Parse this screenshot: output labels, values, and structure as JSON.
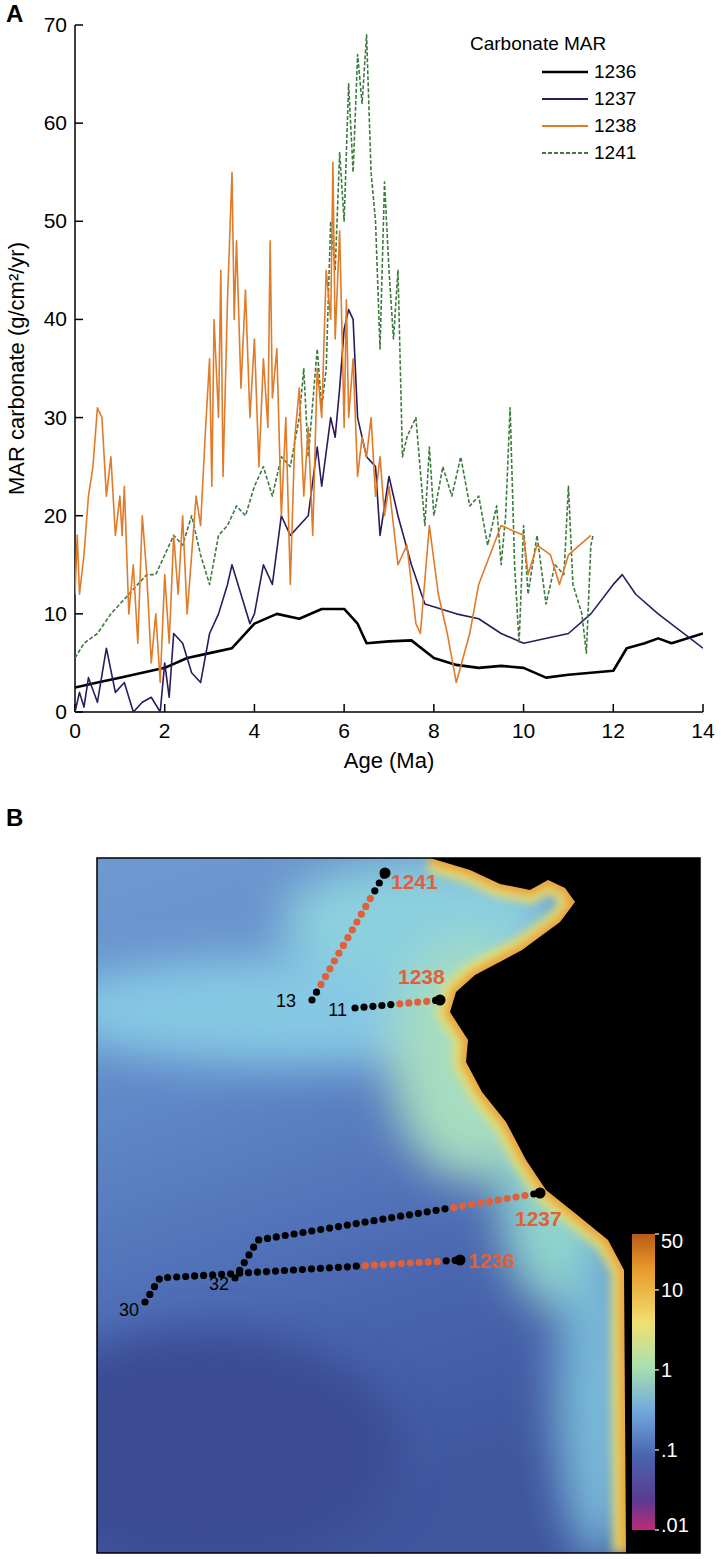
{
  "chart_data": {
    "type": "line",
    "panel_label": "A",
    "x_label": "Age (Ma)",
    "y_label": "MAR carbonate (g/cm²/yr)",
    "legend_title": "Carbonate MAR",
    "legend": "upper right",
    "xlim": [
      0,
      14
    ],
    "xticks": [
      0,
      2,
      4,
      6,
      8,
      10,
      12,
      14
    ],
    "ylim": [
      0,
      70
    ],
    "yticks": [
      0,
      10,
      20,
      30,
      40,
      50,
      60,
      70
    ],
    "grid": false,
    "series": [
      {
        "name": "1236",
        "color": "#000000",
        "line_style": "solid",
        "x": [
          0,
          0.5,
          1,
          1.5,
          2,
          2.5,
          3,
          3.5,
          4,
          4.5,
          5,
          5.5,
          6,
          6.3,
          6.5,
          7,
          7.5,
          8,
          8.5,
          9,
          9.5,
          10,
          10.5,
          11,
          12,
          12.3,
          12.7,
          13,
          13.3,
          14
        ],
        "values": [
          2.5,
          3,
          3.5,
          4,
          4.5,
          5.5,
          6,
          6.5,
          9,
          10,
          9.5,
          10.5,
          10.5,
          9,
          7,
          7.2,
          7.3,
          5.5,
          4.8,
          4.5,
          4.7,
          4.5,
          3.5,
          3.8,
          4.2,
          6.5,
          7,
          7.5,
          7,
          8
        ]
      },
      {
        "name": "1237",
        "color": "#2b1a5e",
        "line_style": "solid",
        "x": [
          0,
          0.1,
          0.2,
          0.3,
          0.5,
          0.7,
          0.9,
          1.1,
          1.3,
          1.5,
          1.7,
          1.9,
          2.0,
          2.1,
          2.2,
          2.4,
          2.6,
          2.8,
          3.0,
          3.2,
          3.4,
          3.5,
          3.7,
          3.9,
          4.0,
          4.2,
          4.4,
          4.6,
          4.8,
          5.0,
          5.2,
          5.4,
          5.5,
          5.7,
          5.8,
          5.9,
          6.0,
          6.1,
          6.2,
          6.3,
          6.5,
          6.7,
          6.8,
          7.0,
          7.2,
          7.5,
          7.8,
          8.5,
          9,
          9.5,
          10,
          11,
          11.5,
          12,
          12.2,
          12.5,
          13,
          14
        ],
        "values": [
          0,
          2,
          0.5,
          3.5,
          1,
          6.5,
          2,
          3,
          0,
          1,
          1.5,
          0,
          5,
          1.5,
          8,
          7,
          4,
          3,
          8,
          10,
          13,
          15,
          12,
          9,
          10,
          15,
          13,
          20,
          18,
          19,
          20,
          27,
          23,
          30,
          28,
          33,
          39,
          41,
          40,
          30,
          26,
          25,
          18,
          24,
          20,
          15,
          11,
          10,
          9.5,
          8,
          7,
          8,
          10,
          13,
          14,
          12,
          10,
          6.5
        ]
      },
      {
        "name": "1238",
        "color": "#e07b2a",
        "line_style": "solid",
        "x": [
          0,
          0.05,
          0.1,
          0.2,
          0.3,
          0.4,
          0.5,
          0.6,
          0.7,
          0.8,
          0.9,
          1.0,
          1.05,
          1.1,
          1.2,
          1.3,
          1.4,
          1.5,
          1.6,
          1.7,
          1.8,
          1.9,
          2.0,
          2.1,
          2.2,
          2.3,
          2.4,
          2.5,
          2.6,
          2.7,
          2.8,
          2.9,
          3.0,
          3.05,
          3.1,
          3.2,
          3.25,
          3.3,
          3.4,
          3.5,
          3.55,
          3.6,
          3.7,
          3.8,
          3.9,
          4.0,
          4.1,
          4.2,
          4.3,
          4.35,
          4.4,
          4.5,
          4.6,
          4.7,
          4.8,
          4.9,
          5.0,
          5.1,
          5.2,
          5.3,
          5.4,
          5.5,
          5.6,
          5.7,
          5.75,
          5.8,
          5.9,
          6.0,
          6.05,
          6.1,
          6.2,
          6.3,
          6.4,
          6.5,
          6.6,
          6.7,
          6.8,
          6.9,
          7.0,
          7.2,
          7.4,
          7.6,
          7.7,
          7.9,
          8.1,
          8.3,
          8.5,
          8.8,
          9.0,
          9.5,
          10.0,
          10.1,
          10.3,
          10.6,
          10.8,
          11.0,
          11.5
        ],
        "values": [
          12,
          18,
          12,
          16,
          22,
          25,
          31,
          30,
          22,
          26,
          18,
          22,
          18,
          23,
          10,
          15,
          7,
          20,
          14,
          5,
          10,
          3,
          14,
          7,
          18,
          12,
          20,
          10,
          16,
          22,
          19,
          28,
          36,
          23,
          40,
          30,
          45,
          24,
          42,
          55,
          40,
          48,
          33,
          43,
          30,
          38,
          25,
          36,
          29,
          48,
          32,
          37,
          20,
          30,
          13,
          28,
          33,
          22,
          29,
          18,
          35,
          30,
          45,
          40,
          56,
          38,
          49,
          29,
          42,
          30,
          36,
          24,
          28,
          26,
          30,
          22,
          26,
          20,
          23,
          15,
          17,
          9,
          8,
          19,
          12,
          8,
          3,
          8,
          13,
          19,
          18,
          14,
          17,
          16,
          13,
          16,
          18
        ]
      },
      {
        "name": "1241",
        "color": "#3d7a3d",
        "line_style": "dashed",
        "x": [
          0,
          0.2,
          0.5,
          0.8,
          1.0,
          1.2,
          1.4,
          1.6,
          1.8,
          2.0,
          2.2,
          2.4,
          2.6,
          2.8,
          3.0,
          3.2,
          3.4,
          3.6,
          3.8,
          4.0,
          4.2,
          4.4,
          4.6,
          4.8,
          5.0,
          5.1,
          5.2,
          5.4,
          5.5,
          5.6,
          5.7,
          5.8,
          5.9,
          6.0,
          6.1,
          6.2,
          6.3,
          6.4,
          6.5,
          6.6,
          6.7,
          6.8,
          6.9,
          7.0,
          7.1,
          7.2,
          7.3,
          7.4,
          7.6,
          7.8,
          7.9,
          8.0,
          8.2,
          8.4,
          8.6,
          8.8,
          9.0,
          9.2,
          9.4,
          9.5,
          9.6,
          9.7,
          9.8,
          9.9,
          10.0,
          10.1,
          10.3,
          10.5,
          10.7,
          10.9,
          11.0,
          11.1,
          11.3,
          11.4,
          11.5,
          11.55
        ],
        "values": [
          5.5,
          7,
          8,
          10,
          11,
          12,
          13,
          14,
          14,
          16,
          18,
          17,
          20,
          16,
          13,
          18,
          19,
          21,
          20,
          23,
          25,
          22,
          26,
          25,
          30,
          35,
          26,
          37,
          31,
          35,
          50,
          45,
          57,
          50,
          64,
          55,
          67,
          62,
          69,
          55,
          50,
          37,
          54,
          45,
          38,
          45,
          26,
          28,
          30,
          19,
          27,
          20,
          25,
          22,
          26,
          21,
          22,
          17,
          21,
          15,
          20,
          31,
          15,
          7,
          19,
          12,
          18,
          11,
          15,
          14,
          23,
          13,
          10,
          6,
          17,
          18
        ]
      }
    ]
  },
  "map": {
    "panel_label": "B",
    "sites": [
      {
        "label": "1241",
        "start_label": "13"
      },
      {
        "label": "1238",
        "start_label": "11"
      },
      {
        "label": "1237",
        "start_label": "32"
      },
      {
        "label": "1236",
        "start_label": "30"
      }
    ],
    "colorbar": {
      "range": [
        0.01,
        50
      ],
      "log": true,
      "ticks": [
        50,
        10,
        1,
        {
          "value": 0.1,
          "label": ".1"
        },
        {
          "value": 0.01,
          "label": ".01"
        }
      ]
    }
  }
}
